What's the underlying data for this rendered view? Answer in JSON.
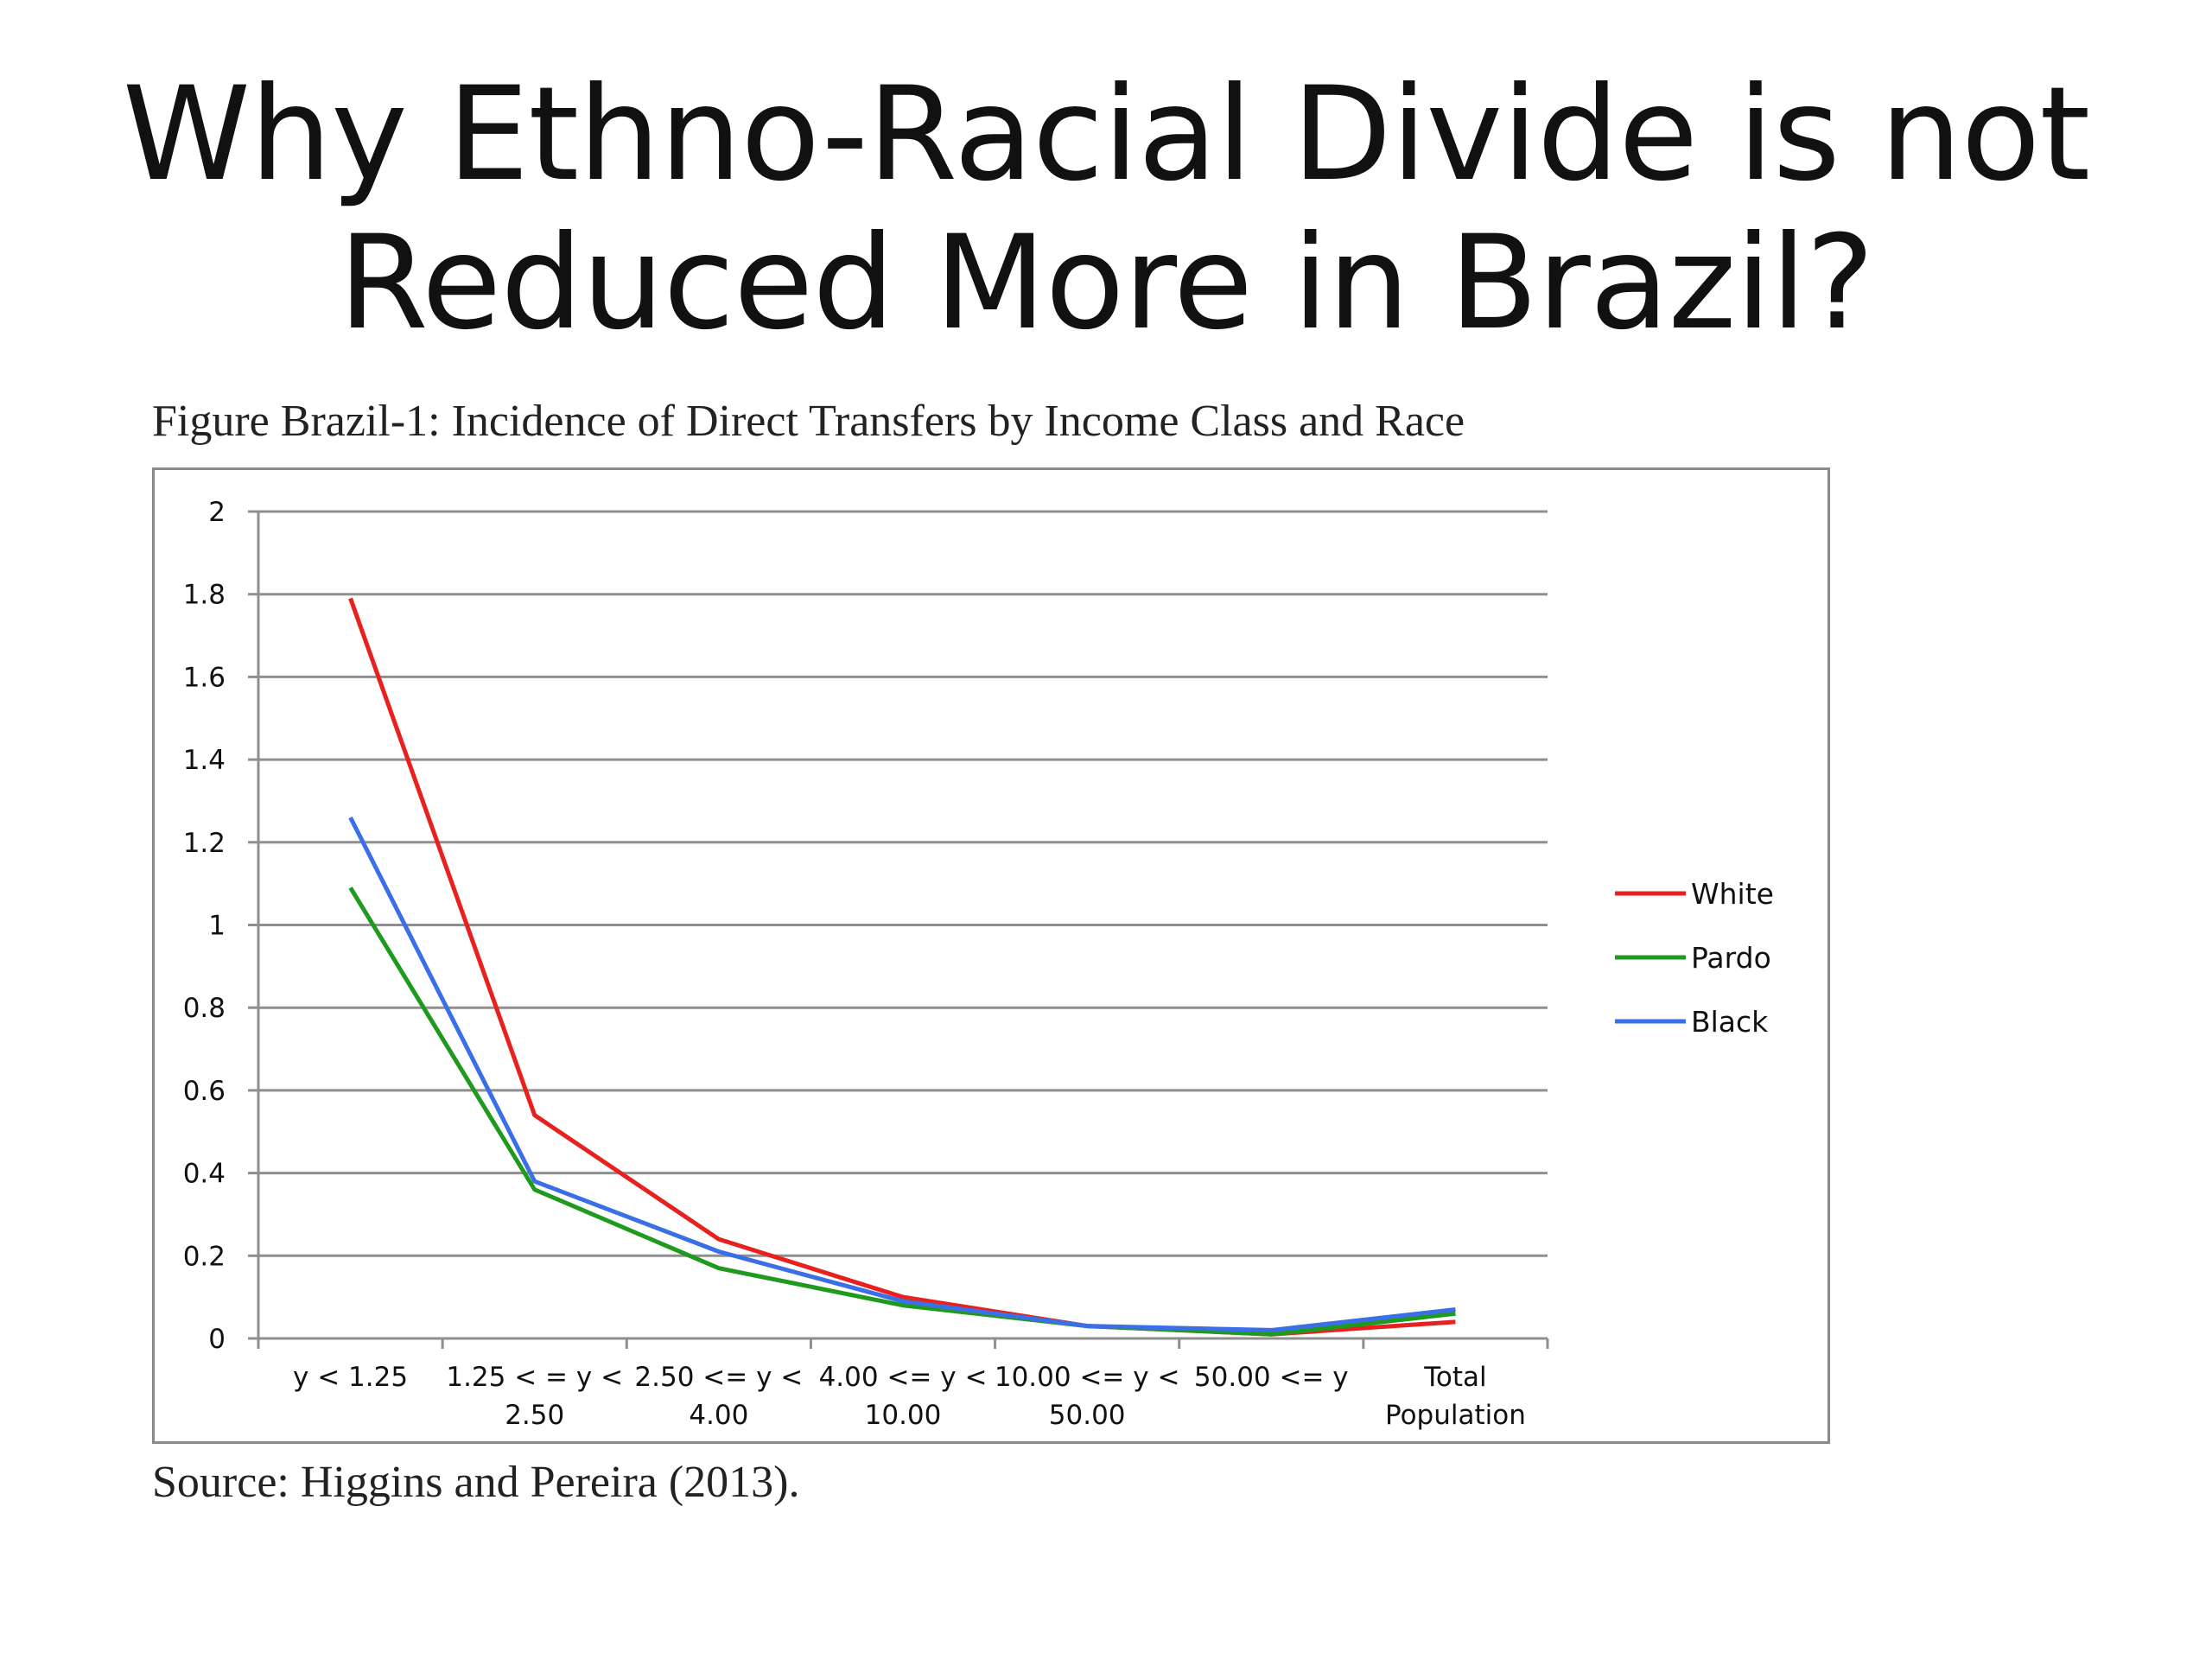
{
  "slide": {
    "title_line1": "Why Ethno-Racial Divide is not",
    "title_line2": "Reduced More in Brazil?"
  },
  "figure": {
    "caption": "Figure Brazil-1: Incidence of Direct Transfers by Income Class and Race",
    "source": "Source: Higgins and Pereira (2013)."
  },
  "chart_data": {
    "type": "line",
    "title": "",
    "xlabel": "",
    "ylabel": "",
    "ylim": [
      0,
      2
    ],
    "yticks": [
      "0",
      "0.2",
      "0.4",
      "0.6",
      "0.8",
      "1",
      "1.2",
      "1.4",
      "1.6",
      "1.8",
      "2"
    ],
    "grid": true,
    "legend_position": "right",
    "categories": [
      [
        "y < 1.25"
      ],
      [
        "1.25 < = y <",
        "2.50"
      ],
      [
        "2.50 <= y <",
        "4.00"
      ],
      [
        "4.00 <= y <",
        "10.00"
      ],
      [
        "10.00 <= y <",
        "50.00"
      ],
      [
        "50.00 <= y"
      ],
      [
        "Total",
        "Population"
      ]
    ],
    "series": [
      {
        "name": "White",
        "color": "#e8201e",
        "values": [
          1.79,
          0.54,
          0.24,
          0.1,
          0.03,
          0.01,
          0.04
        ]
      },
      {
        "name": "Pardo",
        "color": "#1f9a1f",
        "values": [
          1.09,
          0.36,
          0.17,
          0.08,
          0.03,
          0.01,
          0.06
        ]
      },
      {
        "name": "Black",
        "color": "#3b6fe8",
        "values": [
          1.26,
          0.38,
          0.21,
          0.09,
          0.03,
          0.02,
          0.07
        ]
      }
    ]
  }
}
